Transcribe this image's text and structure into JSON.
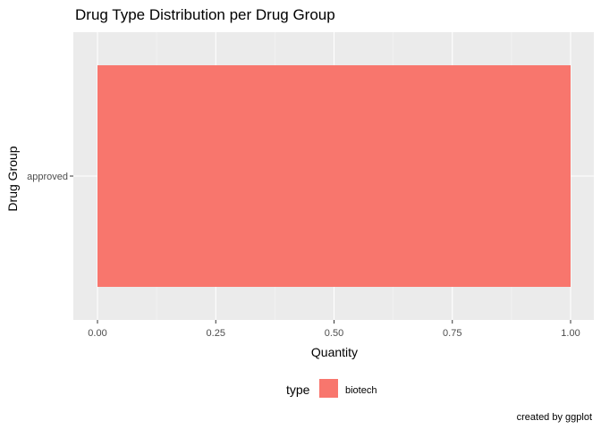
{
  "chart_data": {
    "type": "bar",
    "orientation": "horizontal",
    "title": "Drug Type Distribution per Drug Group",
    "xlabel": "Quantity",
    "ylabel": "Drug Group",
    "categories": [
      "approved"
    ],
    "series": [
      {
        "name": "biotech",
        "values": [
          1.0
        ],
        "color": "#F8766D"
      }
    ],
    "xlim": [
      0,
      1
    ],
    "xticks": [
      0.0,
      0.25,
      0.5,
      0.75,
      1.0
    ],
    "xtick_labels": [
      "0.00",
      "0.25",
      "0.50",
      "0.75",
      "1.00"
    ],
    "grid": true,
    "legend": {
      "title": "type",
      "position": "bottom",
      "entries": [
        "biotech"
      ]
    },
    "caption": "created by ggplot"
  },
  "colors": {
    "panel_background": "#EBEBEB",
    "grid_major": "#FFFFFF",
    "grid_minor": "#F5F5F5",
    "tick_text": "#4D4D4D"
  }
}
